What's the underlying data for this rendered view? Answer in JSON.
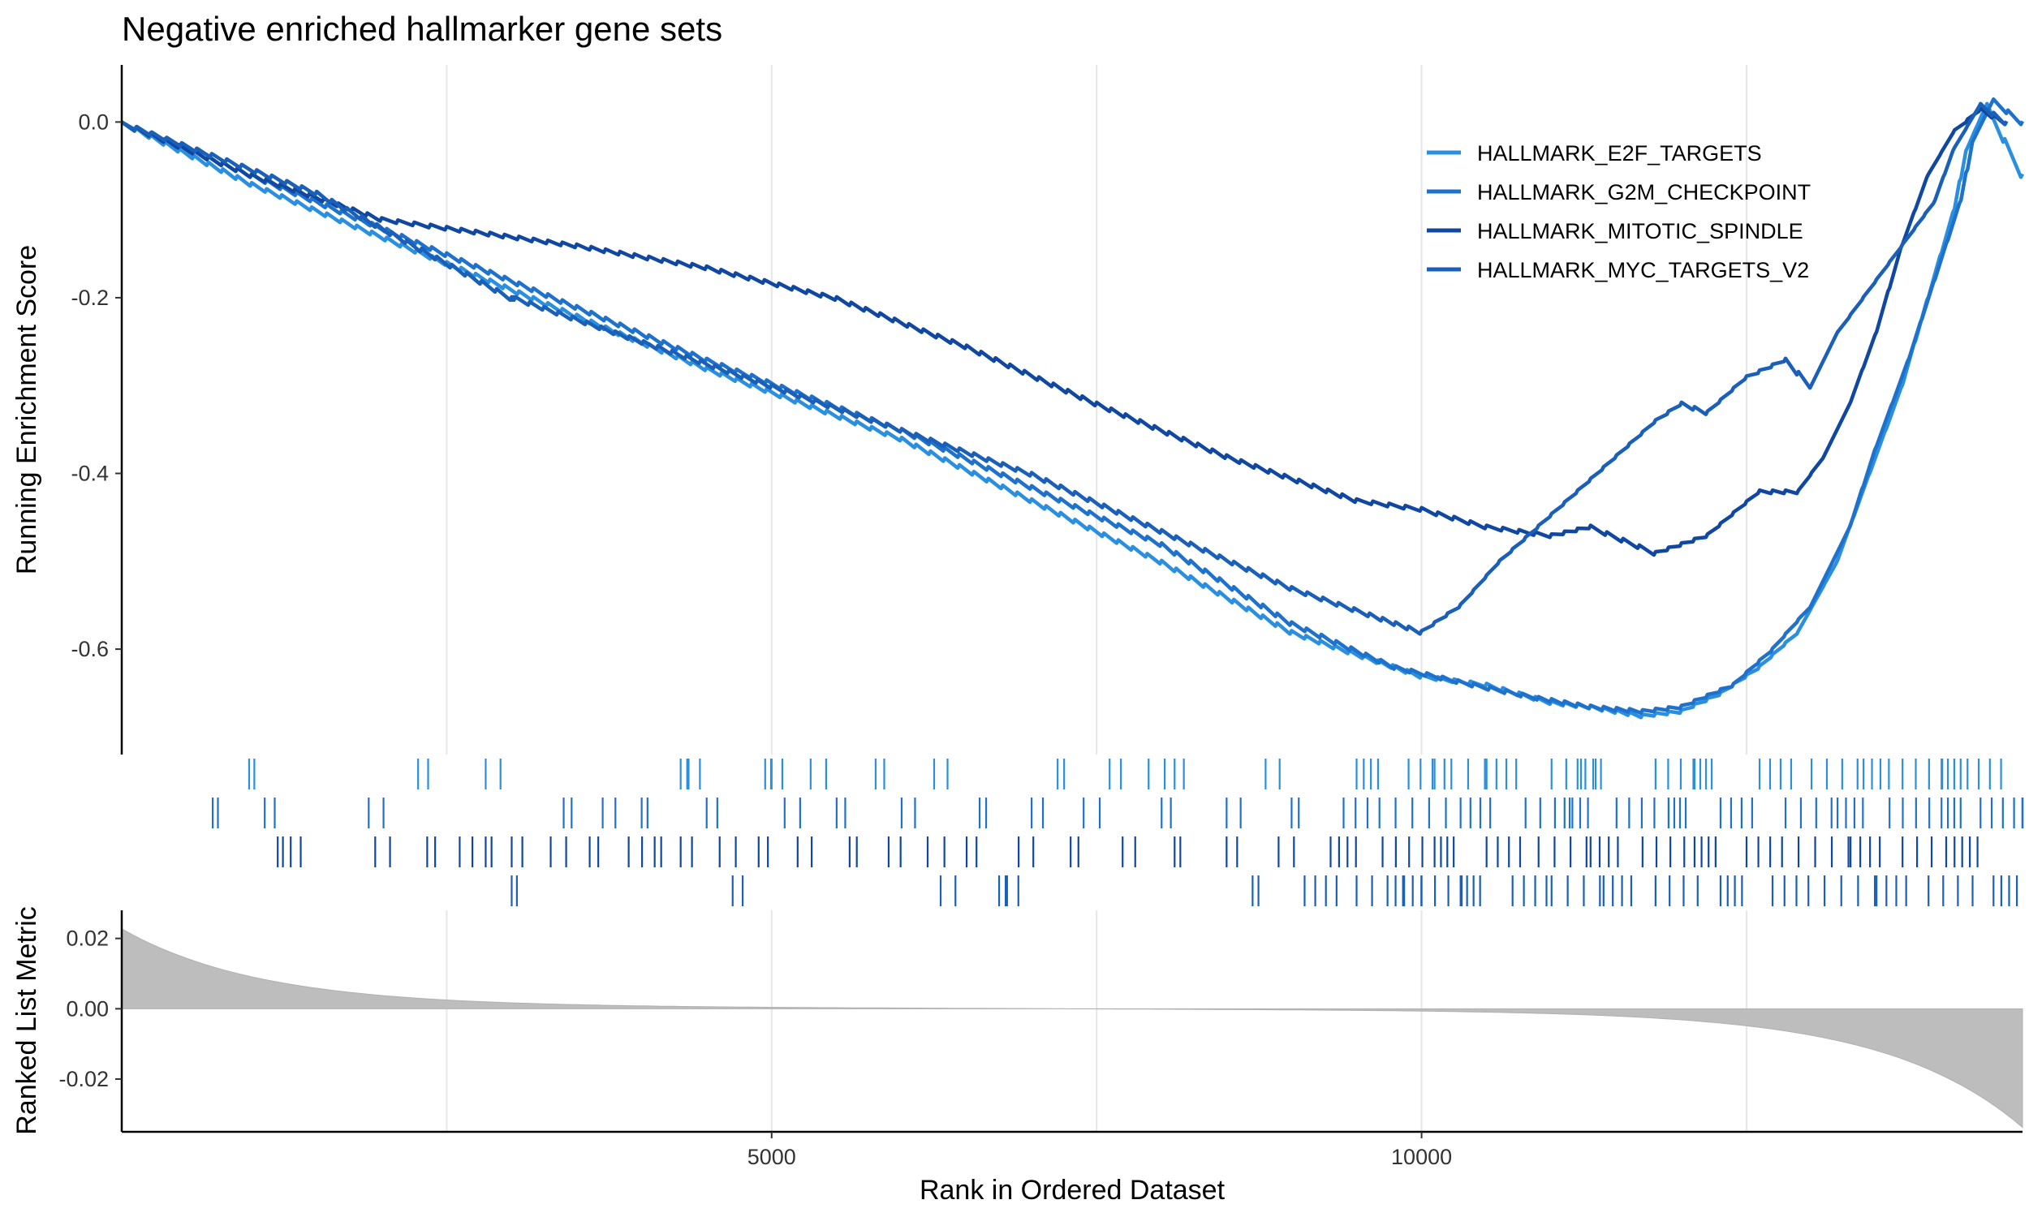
{
  "chart_data": {
    "type": "line",
    "title": "Negative enriched hallmarker gene sets",
    "xlabel": "Rank in Ordered Dataset",
    "ylabel_top": "Running Enrichment Score",
    "ylabel_bottom": "Ranked List Metric",
    "xlim": [
      0,
      14623
    ],
    "ylim_top": [
      -0.72,
      0.065
    ],
    "ylim_bottom": [
      -0.035,
      0.028
    ],
    "x_ticks": [
      "5000",
      "10000"
    ],
    "x_tick_values": [
      5000,
      10000
    ],
    "x_grid": [
      2500,
      5000,
      7500,
      10000,
      12500
    ],
    "y_ticks_top": [
      "0.0",
      "-0.2",
      "-0.4",
      "-0.6"
    ],
    "y_tick_values_top": [
      0.0,
      -0.2,
      -0.4,
      -0.6
    ],
    "y_ticks_bottom": [
      "0.02",
      "0.00",
      "-0.02"
    ],
    "y_tick_values_bottom": [
      0.02,
      0.0,
      -0.02
    ],
    "legend_position": "top-right",
    "series": [
      {
        "name": "HALLMARK_E2F_TARGETS",
        "color": "#2b8fe0",
        "x": [
          0,
          1000,
          2500,
          4500,
          6000,
          8000,
          9000,
          10000,
          10500,
          11000,
          11300,
          11700,
          12000,
          12300,
          12600,
          12900,
          13200,
          13450,
          13700,
          13900,
          14100,
          14200,
          14350,
          14623
        ],
        "y": [
          0,
          -0.07,
          -0.16,
          -0.28,
          -0.36,
          -0.5,
          -0.58,
          -0.63,
          -0.64,
          -0.66,
          -0.665,
          -0.675,
          -0.67,
          -0.65,
          -0.62,
          -0.58,
          -0.5,
          -0.4,
          -0.3,
          -0.2,
          -0.1,
          -0.03,
          0.02,
          -0.06
        ],
        "hits": [
          980,
          2280,
          2800,
          4300,
          4350,
          4950,
          5000,
          5300,
          5800,
          6250,
          7200,
          7600,
          7900,
          8100,
          8800,
          9500,
          9900,
          10100,
          10500,
          11000,
          11200,
          11800,
          12100,
          12600,
          13000,
          13400,
          13700,
          14000,
          14200
        ]
      },
      {
        "name": "HALLMARK_G2M_CHECKPOINT",
        "color": "#1f72cc",
        "x": [
          0,
          1000,
          2500,
          4500,
          6000,
          8000,
          9000,
          9800,
          10400,
          10900,
          11300,
          11700,
          12000,
          12400,
          12700,
          13000,
          13300,
          13500,
          13750,
          13950,
          14150,
          14250,
          14400,
          14623
        ],
        "y": [
          0,
          -0.06,
          -0.15,
          -0.27,
          -0.35,
          -0.48,
          -0.57,
          -0.62,
          -0.64,
          -0.655,
          -0.665,
          -0.67,
          -0.665,
          -0.64,
          -0.6,
          -0.55,
          -0.46,
          -0.37,
          -0.27,
          -0.18,
          -0.09,
          -0.02,
          0.025,
          0.0
        ],
        "hits": [
          700,
          1100,
          1900,
          3400,
          3700,
          4000,
          4500,
          5100,
          5500,
          6000,
          6600,
          7000,
          7400,
          8000,
          8500,
          9000,
          9400,
          9800,
          10300,
          10800,
          11100,
          11500,
          11900,
          12300,
          12800,
          13200,
          13600,
          14000,
          14300,
          14623
        ]
      },
      {
        "name": "HALLMARK_MITOTIC_SPINDLE",
        "color": "#0f47a1",
        "x": [
          0,
          1000,
          2000,
          2500,
          3500,
          4500,
          5500,
          6500,
          7500,
          8500,
          9500,
          10000,
          10500,
          11000,
          11300,
          11800,
          12200,
          12600,
          12900,
          13100,
          13300,
          13500,
          13700,
          13900,
          14100,
          14300,
          14500
        ],
        "y": [
          0,
          -0.06,
          -0.11,
          -0.12,
          -0.14,
          -0.165,
          -0.2,
          -0.255,
          -0.32,
          -0.38,
          -0.43,
          -0.44,
          -0.46,
          -0.47,
          -0.46,
          -0.49,
          -0.47,
          -0.42,
          -0.42,
          -0.38,
          -0.32,
          -0.24,
          -0.14,
          -0.06,
          -0.01,
          0.015,
          0.0
        ],
        "hits": [
          1200,
          1300,
          1950,
          2350,
          2600,
          2800,
          3000,
          3300,
          3600,
          3900,
          4100,
          4300,
          4600,
          4900,
          5200,
          5600,
          5900,
          6200,
          6500,
          6900,
          7300,
          7700,
          8100,
          8500,
          8900,
          9300,
          9700,
          10100,
          10500,
          10900,
          11300,
          11700,
          12100,
          12500,
          12900,
          13300,
          13700,
          14100
        ]
      },
      {
        "name": "HALLMARK_MYC_TARGETS_V2",
        "color": "#1a5fb8",
        "x": [
          0,
          1500,
          3000,
          3030,
          5000,
          7000,
          9000,
          9600,
          10000,
          10300,
          10600,
          10900,
          11200,
          11500,
          11800,
          12000,
          12200,
          12500,
          12800,
          13000,
          13200,
          13400,
          13600,
          13800,
          13950,
          14100,
          14300,
          14500
        ],
        "y": [
          0,
          -0.08,
          -0.2,
          -0.2,
          -0.3,
          -0.4,
          -0.53,
          -0.56,
          -0.58,
          -0.55,
          -0.5,
          -0.46,
          -0.42,
          -0.38,
          -0.34,
          -0.32,
          -0.33,
          -0.29,
          -0.27,
          -0.3,
          -0.24,
          -0.2,
          -0.16,
          -0.12,
          -0.09,
          -0.03,
          0.02,
          0.0
        ],
        "hits": [
          3000,
          4700,
          6300,
          6750,
          6800,
          8700,
          9100,
          9500,
          9800,
          10000,
          10300,
          10700,
          11000,
          11400,
          11800,
          12300,
          12700,
          13100,
          13500,
          13900,
          14400
        ]
      }
    ]
  }
}
